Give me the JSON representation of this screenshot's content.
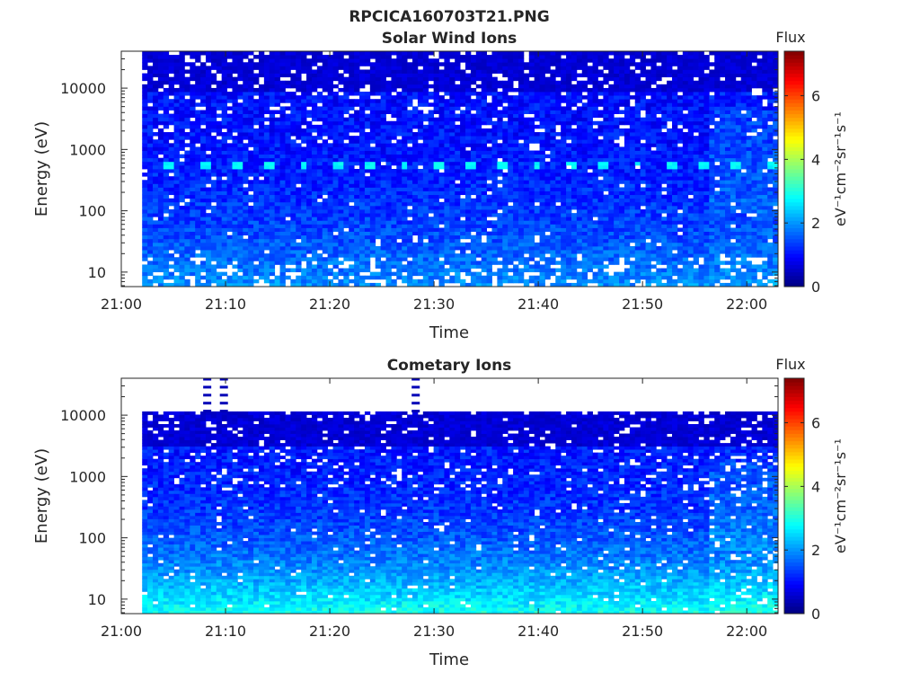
{
  "figure": {
    "title": "RPCICA160703T21.PNG"
  },
  "chart_data": [
    {
      "type": "heatmap",
      "title": "Solar Wind Ions",
      "xlabel": "Time",
      "ylabel": "Energy (eV)",
      "x_ticks": [
        "21:00",
        "21:10",
        "21:20",
        "21:30",
        "21:40",
        "21:50",
        "22:00"
      ],
      "x_range_minutes": [
        0,
        63
      ],
      "data_start_minutes": 2,
      "y_ticks": [
        "10",
        "100",
        "1000",
        "10000"
      ],
      "y_scale": "log",
      "y_range": [
        5.8,
        40000
      ],
      "colorbar": {
        "label": "Flux",
        "unit": "eV⁻¹cm⁻²sr⁻¹s⁻¹",
        "ticks": [
          "0",
          "2",
          "4",
          "6"
        ],
        "range": [
          0,
          7.4
        ],
        "colormap": "jet"
      },
      "features": {
        "mean_level": 1.0,
        "beam_energy_eV": 560,
        "beam_level": 2.6,
        "beam_period_minutes": 3.2,
        "low_energy_level": 1.8,
        "sparse_gaps": true
      }
    },
    {
      "type": "heatmap",
      "title": "Cometary Ions",
      "xlabel": "Time",
      "ylabel": "Energy (eV)",
      "x_ticks": [
        "21:00",
        "21:10",
        "21:20",
        "21:30",
        "21:40",
        "21:50",
        "22:00"
      ],
      "x_range_minutes": [
        0,
        63
      ],
      "data_start_minutes": 2,
      "y_ticks": [
        "10",
        "100",
        "1000",
        "10000"
      ],
      "y_scale": "log",
      "y_range": [
        5.8,
        40000
      ],
      "y_data_max_eV": 11500,
      "colorbar": {
        "label": "Flux",
        "unit": "eV⁻¹cm⁻²sr⁻¹s⁻¹",
        "ticks": [
          "0",
          "2",
          "4",
          "6"
        ],
        "range": [
          0,
          7.4
        ],
        "colormap": "jet"
      },
      "features": {
        "mean_level": 1.1,
        "low_energy_level": 2.6,
        "sparse_gaps": true,
        "high_energy_markers_minutes": [
          8.2,
          9.8,
          28.2
        ]
      }
    }
  ]
}
